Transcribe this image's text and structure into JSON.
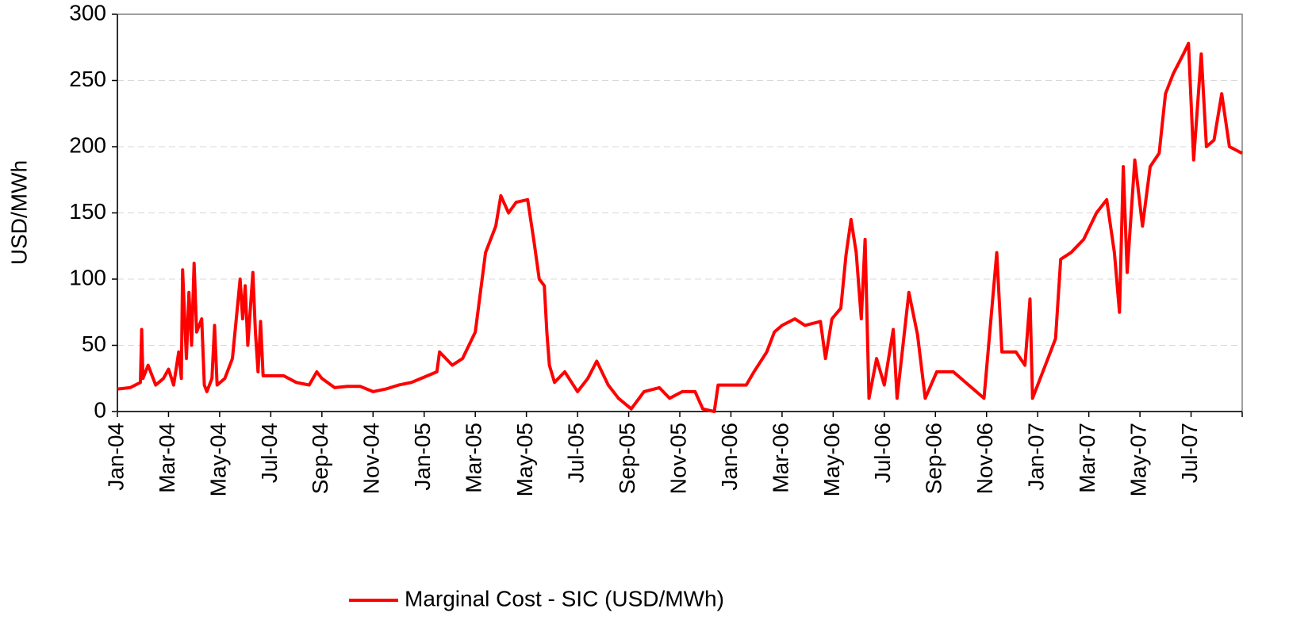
{
  "chart_data": {
    "type": "line",
    "y_label": "USD/MWh",
    "x": [
      0,
      0.5,
      0.9,
      0.95,
      1.0,
      1.2,
      1.5,
      1.8,
      2.0,
      2.2,
      2.4,
      2.5,
      2.55,
      2.7,
      2.8,
      2.9,
      3.0,
      3.1,
      3.3,
      3.4,
      3.5,
      3.7,
      3.8,
      3.9,
      4.2,
      4.5,
      4.7,
      4.8,
      4.9,
      5.0,
      5.1,
      5.3,
      5.4,
      5.5,
      5.6,
      5.7,
      6,
      6.5,
      7,
      7.5,
      7.8,
      8,
      8.5,
      9,
      9.5,
      10,
      10.5,
      11,
      11.5,
      12,
      12.5,
      12.6,
      13.1,
      13.5,
      14,
      14.4,
      14.8,
      15.0,
      15.3,
      15.6,
      16.05,
      16.3,
      16.5,
      16.7,
      16.8,
      16.9,
      17.1,
      17.5,
      18,
      18.4,
      18.75,
      19.2,
      19.6,
      20.1,
      20.6,
      21.2,
      21.6,
      22.1,
      22.6,
      22.9,
      23.35,
      23.5,
      24.6,
      24.9,
      25.4,
      25.7,
      26,
      26.5,
      26.9,
      27.5,
      27.7,
      27.95,
      28.3,
      28.5,
      28.7,
      28.9,
      29.1,
      29.25,
      29.4,
      29.7,
      30.0,
      30.35,
      30.5,
      30.96,
      31.3,
      31.6,
      32.05,
      32.7,
      33.3,
      33.9,
      34.4,
      34.6,
      35.15,
      35.5,
      35.7,
      35.8,
      36.4,
      36.7,
      36.9,
      37.3,
      37.8,
      38.3,
      38.7,
      39.0,
      39.2,
      39.35,
      39.5,
      39.8,
      40.1,
      40.4,
      40.75,
      41.0,
      41.3,
      41.7,
      41.9,
      42.1,
      42.4,
      42.6,
      42.9,
      43.2,
      43.5,
      44.0
    ],
    "series": [
      {
        "name": "Marginal Cost - SIC (USD/MWh)",
        "color": "#ff0000",
        "values": [
          17,
          18,
          22,
          62,
          25,
          35,
          20,
          25,
          32,
          20,
          45,
          25,
          107,
          40,
          90,
          50,
          112,
          60,
          70,
          20,
          15,
          25,
          65,
          20,
          25,
          40,
          80,
          100,
          70,
          95,
          50,
          105,
          60,
          30,
          68,
          27,
          27,
          27,
          22,
          20,
          30,
          25,
          18,
          19,
          19,
          15,
          17,
          20,
          22,
          26,
          30,
          45,
          35,
          40,
          60,
          120,
          140,
          163,
          150,
          158,
          160,
          128,
          100,
          95,
          60,
          35,
          22,
          30,
          15,
          25,
          38,
          20,
          10,
          2,
          15,
          18,
          10,
          15,
          15,
          2,
          0,
          20,
          20,
          30,
          45,
          60,
          65,
          70,
          65,
          68,
          40,
          70,
          78,
          118,
          145,
          120,
          70,
          130,
          10,
          40,
          20,
          62,
          10,
          90,
          58,
          10,
          30,
          30,
          20,
          10,
          120,
          45,
          45,
          35,
          85,
          10,
          40,
          55,
          115,
          120,
          130,
          150,
          160,
          120,
          75,
          185,
          105,
          190,
          140,
          185,
          195,
          240,
          255,
          270,
          278,
          190,
          270,
          200,
          205,
          240,
          200,
          195
        ]
      }
    ],
    "xlim": [
      0,
      44
    ],
    "xticks": [
      {
        "value": 0,
        "label": "Jan-04"
      },
      {
        "value": 2,
        "label": "Mar-04"
      },
      {
        "value": 4,
        "label": "May-04"
      },
      {
        "value": 6,
        "label": "Jul-04"
      },
      {
        "value": 8,
        "label": "Sep-04"
      },
      {
        "value": 10,
        "label": "Nov-04"
      },
      {
        "value": 12,
        "label": "Jan-05"
      },
      {
        "value": 14,
        "label": "Mar-05"
      },
      {
        "value": 16,
        "label": "May-05"
      },
      {
        "value": 18,
        "label": "Jul-05"
      },
      {
        "value": 20,
        "label": "Sep-05"
      },
      {
        "value": 22,
        "label": "Nov-05"
      },
      {
        "value": 24,
        "label": "Jan-06"
      },
      {
        "value": 26,
        "label": "Mar-06"
      },
      {
        "value": 28,
        "label": "May-06"
      },
      {
        "value": 30,
        "label": "Jul-06"
      },
      {
        "value": 32,
        "label": "Sep-06"
      },
      {
        "value": 34,
        "label": "Nov-06"
      },
      {
        "value": 36,
        "label": "Jan-07"
      },
      {
        "value": 38,
        "label": "Mar-07"
      },
      {
        "value": 40,
        "label": "May-07"
      },
      {
        "value": 42,
        "label": "Jul-07"
      }
    ],
    "ylim": [
      0,
      300
    ],
    "yticks": [
      0,
      50,
      100,
      150,
      200,
      250,
      300
    ],
    "grid": true
  }
}
